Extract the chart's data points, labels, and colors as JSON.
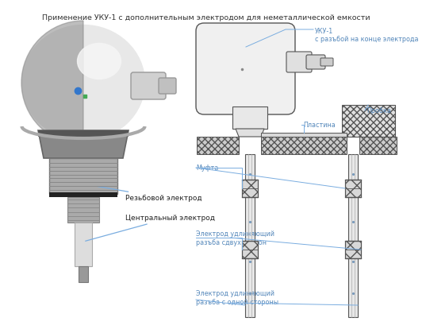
{
  "title": "Применение УКУ-1 с дополнительным электродом для неметаллической емкости",
  "title_fontsize": 6.8,
  "background_color": "#ffffff",
  "labels": {
    "uku1": "УКУ-1\nс разъбой на конце электрода",
    "plastina": "Пластина",
    "proba": "Пробка",
    "mufta": "Муфта",
    "electrode1": "Электрод удлиняющий\nразъба сдвух сторон",
    "electrode2": "Электрод удлиняющий\nразъба с одной стороны",
    "rezb": "Резьбовой электрод",
    "central": "Центральный электрод"
  },
  "line_color": "#7aade0",
  "diagram_color": "#555555",
  "label_fontsize": 5.8,
  "label_color": "#5588bb"
}
